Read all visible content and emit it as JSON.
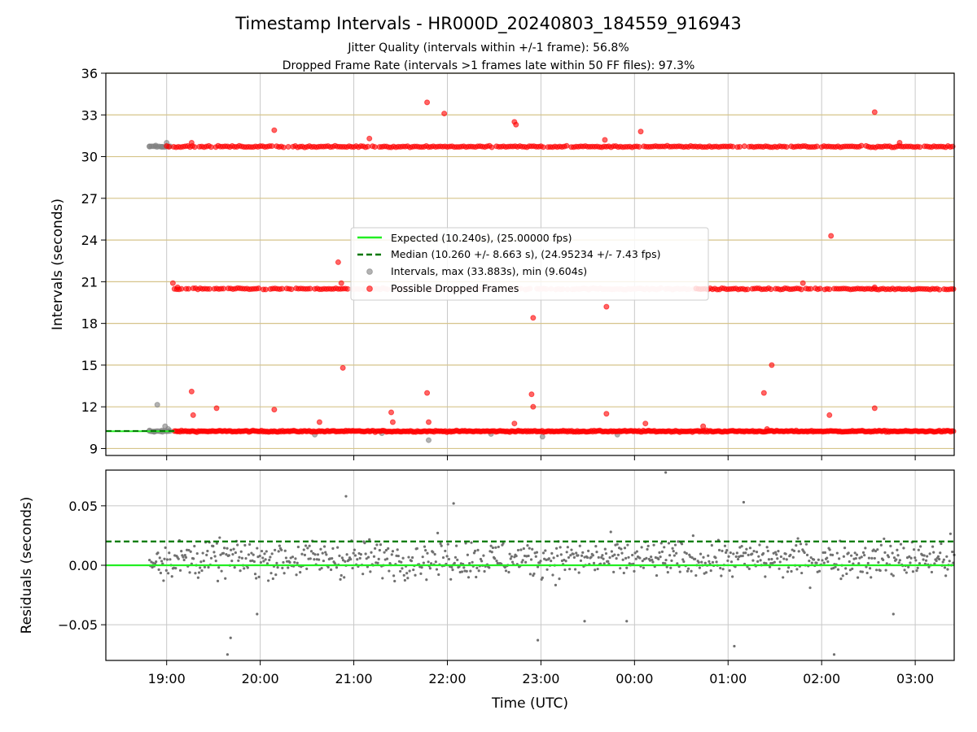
{
  "chart_data": {
    "type": "scatter",
    "title": "Timestamp Intervals - HR000D_20240803_184559_916943",
    "subtitles": [
      "Jitter Quality (intervals within +/-1 frame): 56.8%",
      "Dropped Frame Rate (intervals >1 frames late within 50 FF files): 97.3%"
    ],
    "xlabel": "Time (UTC)",
    "x_ticks": [
      "19:00",
      "20:00",
      "21:00",
      "22:00",
      "23:00",
      "00:00",
      "01:00",
      "02:00",
      "03:00"
    ],
    "xlim": [
      "18:21",
      "03:25"
    ],
    "top": {
      "ylabel": "Intervals (seconds)",
      "ylim": [
        8.5,
        36
      ],
      "y_ticks": [
        "9",
        "12",
        "15",
        "18",
        "21",
        "24",
        "27",
        "30",
        "33",
        "36"
      ],
      "harmonic_gridlines": [
        10.24,
        20.48,
        30.72
      ],
      "expected_interval": 10.24,
      "median_interval": 10.26,
      "legend": {
        "placement": "center",
        "entries": [
          {
            "label": "Expected (10.240s), (25.00000 fps)",
            "style": "solid-line",
            "color": "#22ee22"
          },
          {
            "label": "Median (10.260 +/- 8.663 s), (24.95234 +/- 7.43 fps)",
            "style": "dashed-line",
            "color": "#007700"
          },
          {
            "label": "Intervals, max (33.883s), min (9.604s)",
            "style": "marker",
            "color": "#808080"
          },
          {
            "label": "Possible Dropped Frames",
            "style": "marker",
            "color": "#ff0000"
          }
        ]
      },
      "bands": [
        {
          "name": "1-frame",
          "level": 10.24,
          "start": "19:05",
          "end": "03:25",
          "color": "#ff0000"
        },
        {
          "name": "2-frame",
          "level": 20.48,
          "start": "19:05",
          "end": "03:25",
          "color": "#ff0000",
          "faded_segment": [
            "20:57",
            "00:38"
          ]
        },
        {
          "name": "3-frame",
          "level": 30.72,
          "start": "19:00",
          "end": "03:25",
          "color": "#ff0000"
        }
      ],
      "gray_cluster": [
        {
          "x": "18:49",
          "y": 10.3
        },
        {
          "x": "18:52",
          "y": 10.2
        },
        {
          "x": "18:54",
          "y": 12.15
        },
        {
          "x": "18:57",
          "y": 10.3
        },
        {
          "x": "18:59",
          "y": 10.6
        },
        {
          "x": "19:01",
          "y": 10.4
        },
        {
          "x": "18:49",
          "y": 30.72
        },
        {
          "x": "18:53",
          "y": 30.8
        },
        {
          "x": "18:57",
          "y": 30.7
        },
        {
          "x": "19:00",
          "y": 31.0
        },
        {
          "x": "20:35",
          "y": 10.0
        },
        {
          "x": "21:18",
          "y": 10.1
        },
        {
          "x": "21:48",
          "y": 9.6
        },
        {
          "x": "22:28",
          "y": 10.05
        },
        {
          "x": "23:01",
          "y": 9.85
        },
        {
          "x": "23:49",
          "y": 10.0
        }
      ],
      "red_outliers": [
        {
          "x": "19:04",
          "y": 20.9
        },
        {
          "x": "19:07",
          "y": 20.6
        },
        {
          "x": "19:16",
          "y": 31.0
        },
        {
          "x": "19:16",
          "y": 13.1
        },
        {
          "x": "19:17",
          "y": 11.4
        },
        {
          "x": "19:32",
          "y": 11.9
        },
        {
          "x": "20:09",
          "y": 31.9
        },
        {
          "x": "20:09",
          "y": 11.8
        },
        {
          "x": "20:38",
          "y": 10.9
        },
        {
          "x": "20:50",
          "y": 22.4
        },
        {
          "x": "20:52",
          "y": 20.9
        },
        {
          "x": "20:53",
          "y": 14.8
        },
        {
          "x": "21:10",
          "y": 31.3
        },
        {
          "x": "21:24",
          "y": 11.6
        },
        {
          "x": "21:25",
          "y": 10.9
        },
        {
          "x": "21:47",
          "y": 33.9
        },
        {
          "x": "21:47",
          "y": 13.0
        },
        {
          "x": "21:48",
          "y": 10.9
        },
        {
          "x": "21:58",
          "y": 33.1
        },
        {
          "x": "22:43",
          "y": 32.5
        },
        {
          "x": "22:44",
          "y": 32.3
        },
        {
          "x": "22:43",
          "y": 10.8
        },
        {
          "x": "22:55",
          "y": 18.4
        },
        {
          "x": "22:54",
          "y": 12.9
        },
        {
          "x": "22:55",
          "y": 12.0
        },
        {
          "x": "23:41",
          "y": 31.2
        },
        {
          "x": "23:42",
          "y": 19.2
        },
        {
          "x": "23:42",
          "y": 11.5
        },
        {
          "x": "24:04",
          "y": 31.8
        },
        {
          "x": "24:07",
          "y": 10.8
        },
        {
          "x": "24:44",
          "y": 10.6
        },
        {
          "x": "25:23",
          "y": 13.0
        },
        {
          "x": "25:28",
          "y": 15.0
        },
        {
          "x": "25:25",
          "y": 10.4
        },
        {
          "x": "25:48",
          "y": 20.9
        },
        {
          "x": "26:06",
          "y": 24.3
        },
        {
          "x": "26:05",
          "y": 11.4
        },
        {
          "x": "26:34",
          "y": 33.2
        },
        {
          "x": "26:34",
          "y": 11.9
        },
        {
          "x": "26:34",
          "y": 20.6
        },
        {
          "x": "26:50",
          "y": 31.0
        }
      ]
    },
    "bottom": {
      "ylabel": "Residuals (seconds)",
      "ylim": [
        -0.08,
        0.08
      ],
      "y_ticks": [
        "−0.05",
        "0.00",
        "0.05"
      ],
      "y_tick_values": [
        -0.05,
        0.0,
        0.05
      ],
      "expected_line": 0.0,
      "median_line": 0.02,
      "points_color": "#808080",
      "residual_spread": 0.015,
      "notable_points": [
        {
          "x": "19:39",
          "y": -0.075
        },
        {
          "x": "19:41",
          "y": -0.061
        },
        {
          "x": "19:58",
          "y": -0.041
        },
        {
          "x": "20:55",
          "y": 0.058
        },
        {
          "x": "22:04",
          "y": 0.052
        },
        {
          "x": "22:58",
          "y": -0.063
        },
        {
          "x": "23:28",
          "y": -0.047
        },
        {
          "x": "23:55",
          "y": -0.047
        },
        {
          "x": "24:20",
          "y": 0.078
        },
        {
          "x": "25:04",
          "y": -0.068
        },
        {
          "x": "25:10",
          "y": 0.053
        },
        {
          "x": "26:08",
          "y": -0.075
        },
        {
          "x": "26:46",
          "y": -0.041
        }
      ]
    }
  }
}
